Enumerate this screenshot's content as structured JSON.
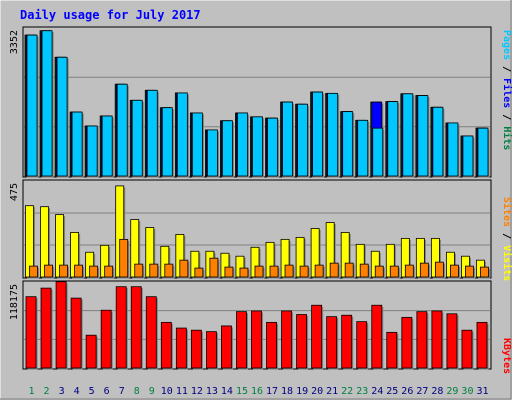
{
  "title": "Daily usage for July 2017",
  "colors": {
    "background": "#c0c0c0",
    "title": "#0000ff",
    "pages": "#00c8ff",
    "files": "#0000ff",
    "hits": "#008040",
    "visits": "#ffff00",
    "sites": "#ff8000",
    "kbytes": "#ff0000",
    "weekend_day_label": "#008040",
    "weekday_label": "#000080"
  },
  "chart_data": [
    {
      "type": "bar",
      "title": "Pages / Files / Hits",
      "ylabel_max": "3352",
      "ylim": [
        0,
        3352
      ],
      "x": [
        1,
        2,
        3,
        4,
        5,
        6,
        7,
        8,
        9,
        10,
        11,
        12,
        13,
        14,
        15,
        16,
        17,
        18,
        19,
        20,
        21,
        22,
        23,
        24,
        25,
        26,
        27,
        28,
        29,
        30,
        31
      ],
      "legend": [
        "Pages",
        "Files",
        "Hits"
      ],
      "series": [
        {
          "name": "Hits",
          "values": [
            3240,
            3340,
            2730,
            1470,
            1150,
            1380,
            2110,
            1740,
            1970,
            1570,
            1910,
            1450,
            1060,
            1270,
            1450,
            1360,
            1330,
            1700,
            1650,
            1930,
            1900,
            1480,
            1280,
            1700,
            1710,
            1890,
            1850,
            1580,
            1220,
            920,
            1100
          ]
        },
        {
          "name": "Files",
          "values": [
            3240,
            3340,
            2730,
            1470,
            1150,
            1380,
            2110,
            1740,
            1970,
            1570,
            1910,
            1450,
            1060,
            1270,
            1450,
            1360,
            1330,
            1700,
            1650,
            1930,
            1900,
            1480,
            1280,
            1700,
            1710,
            1890,
            1850,
            1580,
            1220,
            920,
            1100
          ]
        },
        {
          "name": "Pages",
          "values": [
            3240,
            3340,
            2730,
            1470,
            1150,
            1380,
            2110,
            1740,
            1970,
            1570,
            1910,
            1450,
            1060,
            1270,
            1450,
            1360,
            1330,
            1700,
            1650,
            1930,
            1900,
            1480,
            1280,
            1100,
            1710,
            1890,
            1850,
            1580,
            1220,
            920,
            1100
          ]
        }
      ]
    },
    {
      "type": "bar",
      "title": "Sites / Visits",
      "ylabel_max": "475",
      "ylim": [
        0,
        475
      ],
      "x": [
        1,
        2,
        3,
        4,
        5,
        6,
        7,
        8,
        9,
        10,
        11,
        12,
        13,
        14,
        15,
        16,
        17,
        18,
        19,
        20,
        21,
        22,
        23,
        24,
        25,
        26,
        27,
        28,
        29,
        30,
        31
      ],
      "legend": [
        "Sites",
        "Visits"
      ],
      "series": [
        {
          "name": "Visits",
          "values": [
            360,
            355,
            315,
            225,
            125,
            160,
            460,
            290,
            250,
            155,
            215,
            130,
            130,
            120,
            105,
            150,
            175,
            190,
            200,
            245,
            275,
            225,
            165,
            130,
            165,
            195,
            195,
            195,
            125,
            105,
            85
          ]
        },
        {
          "name": "Sites",
          "values": [
            55,
            60,
            60,
            60,
            55,
            55,
            190,
            65,
            65,
            65,
            85,
            45,
            95,
            50,
            45,
            55,
            55,
            60,
            55,
            60,
            70,
            70,
            65,
            55,
            55,
            60,
            70,
            75,
            60,
            55,
            50
          ]
        }
      ]
    },
    {
      "type": "bar",
      "title": "KBytes",
      "ylabel_max": "118175",
      "ylim": [
        0,
        118175
      ],
      "x": [
        1,
        2,
        3,
        4,
        5,
        6,
        7,
        8,
        9,
        10,
        11,
        12,
        13,
        14,
        15,
        16,
        17,
        18,
        19,
        20,
        21,
        22,
        23,
        24,
        25,
        26,
        27,
        28,
        29,
        30,
        31
      ],
      "legend": [
        "KBytes"
      ],
      "series": [
        {
          "name": "KBytes",
          "values": [
            100000,
            112000,
            121000,
            98000,
            46000,
            81000,
            114000,
            114000,
            100000,
            64000,
            56000,
            53000,
            51000,
            59000,
            79000,
            80000,
            64000,
            80000,
            75000,
            88000,
            72000,
            74000,
            65000,
            88000,
            50000,
            71000,
            79000,
            80000,
            76000,
            53000,
            64000
          ]
        }
      ]
    }
  ],
  "x_labels": [
    "1",
    "2",
    "3",
    "4",
    "5",
    "6",
    "7",
    "8",
    "9",
    "10",
    "11",
    "12",
    "13",
    "14",
    "15",
    "16",
    "17",
    "18",
    "19",
    "20",
    "21",
    "22",
    "23",
    "24",
    "25",
    "26",
    "27",
    "28",
    "29",
    "30",
    "31"
  ],
  "weekend_days": [
    1,
    2,
    8,
    9,
    15,
    16,
    22,
    23,
    29,
    30
  ]
}
